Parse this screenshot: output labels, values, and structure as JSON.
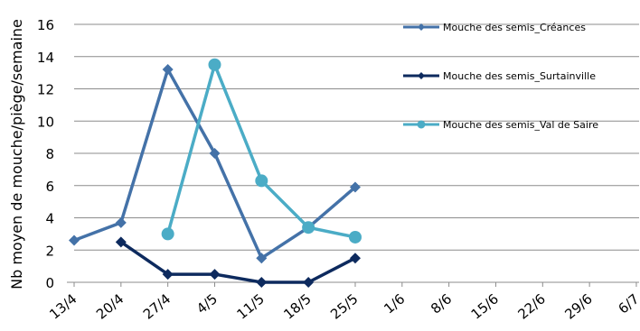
{
  "chart_data": {
    "type": "line",
    "title": "",
    "xlabel": "",
    "ylabel": "Nb moyen de mouche/piège/semaine",
    "ylim": [
      0,
      16
    ],
    "yticks": [
      0,
      2,
      4,
      6,
      8,
      10,
      12,
      14,
      16
    ],
    "grid": "horizontal",
    "legend_position": "right",
    "categories": [
      "13/4",
      "20/4",
      "27/4",
      "4/5",
      "11/5",
      "18/5",
      "25/5",
      "1/6",
      "8/6",
      "15/6",
      "22/6",
      "29/6",
      "6/7"
    ],
    "series": [
      {
        "name": "Mouche des semis_Créances",
        "color": "#4472a8",
        "marker": "diamond",
        "values": [
          2.6,
          3.7,
          13.2,
          8.0,
          1.5,
          3.4,
          5.9,
          null,
          null,
          null,
          null,
          null,
          null
        ]
      },
      {
        "name": "Mouche des semis_Surtainville",
        "color": "#0d2a5e",
        "marker": "diamond",
        "values": [
          null,
          2.5,
          0.5,
          0.5,
          0.0,
          0.0,
          1.5,
          null,
          null,
          null,
          null,
          null,
          null
        ]
      },
      {
        "name": "Mouche des semis_Val de Saire",
        "color": "#4bacc6",
        "marker": "circle",
        "values": [
          null,
          null,
          3.0,
          13.5,
          6.3,
          3.4,
          2.8,
          null,
          null,
          null,
          null,
          null,
          null
        ]
      }
    ]
  }
}
